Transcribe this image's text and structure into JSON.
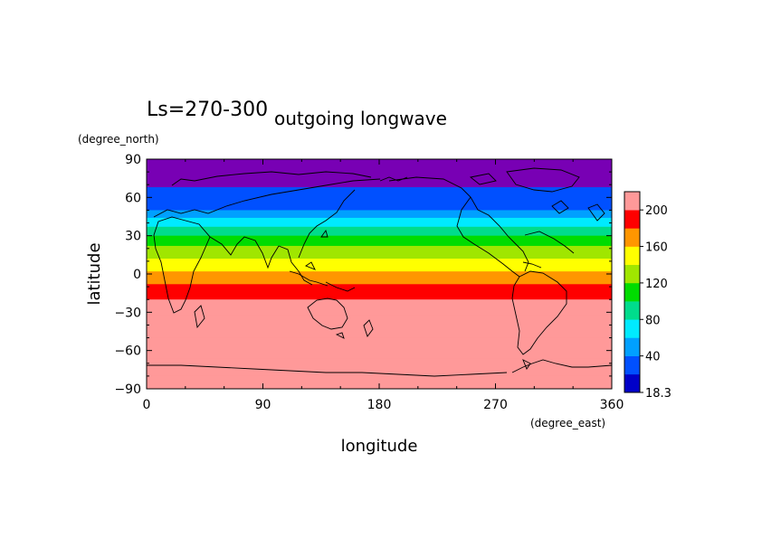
{
  "chart_data": {
    "type": "heatmap",
    "title": "outgoing longwave",
    "subtitle": "Ls=270-300",
    "xlabel": "longitude",
    "ylabel": "latitude",
    "x_units": "(degree_east)",
    "y_units": "(degree_north)",
    "xlim": [
      0,
      360
    ],
    "ylim": [
      -90,
      90
    ],
    "x_ticks": [
      0,
      90,
      180,
      270,
      360
    ],
    "y_ticks": [
      90,
      60,
      30,
      0,
      -30,
      -60,
      -90
    ],
    "colorbar": {
      "labels": [
        "200",
        "160",
        "120",
        "80",
        "40",
        "18.3"
      ],
      "levels": [
        18.3,
        20,
        40,
        60,
        80,
        100,
        120,
        140,
        160,
        180,
        200,
        220
      ],
      "colors": [
        "#0000c8",
        "#0050ff",
        "#00a0ff",
        "#00eaff",
        "#00dc8c",
        "#00dc00",
        "#a0e600",
        "#ffff00",
        "#ff9600",
        "#ff0000",
        "#ff9999"
      ]
    },
    "polar_cap_color": "#7800b4",
    "zonal_mean_olr": [
      {
        "lat": 90,
        "value": 10
      },
      {
        "lat": 80,
        "value": 12
      },
      {
        "lat": 72,
        "value": 18
      },
      {
        "lat": 68,
        "value": 30
      },
      {
        "lat": 58,
        "value": 38
      },
      {
        "lat": 50,
        "value": 58
      },
      {
        "lat": 44,
        "value": 70
      },
      {
        "lat": 37,
        "value": 90
      },
      {
        "lat": 30,
        "value": 110
      },
      {
        "lat": 22,
        "value": 130
      },
      {
        "lat": 12,
        "value": 150
      },
      {
        "lat": 2,
        "value": 170
      },
      {
        "lat": -8,
        "value": 180
      },
      {
        "lat": -20,
        "value": 200
      },
      {
        "lat": -32,
        "value": 210
      },
      {
        "lat": -50,
        "value": 225
      },
      {
        "lat": -66,
        "value": 230
      },
      {
        "lat": -72,
        "value": 220
      },
      {
        "lat": -80,
        "value": 205
      },
      {
        "lat": -90,
        "value": 200
      }
    ]
  }
}
